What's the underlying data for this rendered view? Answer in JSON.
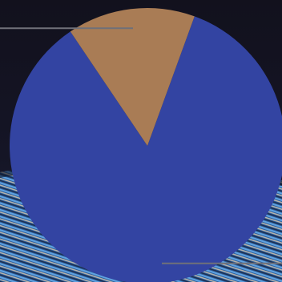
{
  "colors": {
    "background_dark": "#12111d",
    "fabric_base": "#2c5f9e",
    "fabric_light": "#5fa2e0",
    "fabric_stripe": "#b8b4aa",
    "fabric_dark": "#1d2e4e",
    "leader_line": "#6f7079"
  },
  "chart_data": {
    "type": "pie",
    "title": "",
    "legend": "none",
    "start_angle_deg": 20,
    "slices": [
      {
        "name": "",
        "value": 85,
        "color": "#3344a2"
      },
      {
        "name": "",
        "value": 15,
        "color": "#a97c55"
      }
    ]
  }
}
